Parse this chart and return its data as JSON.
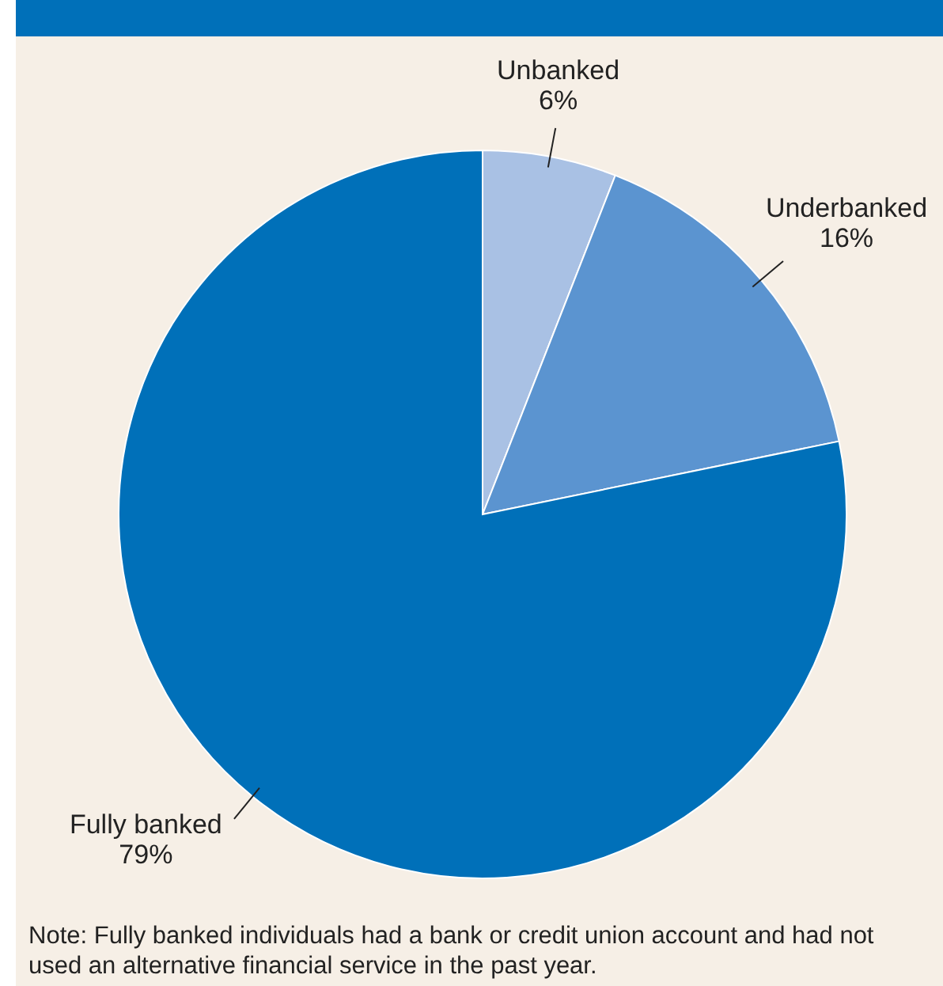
{
  "chart_data": {
    "type": "pie",
    "categories": [
      "Unbanked",
      "Underbanked",
      "Fully banked"
    ],
    "values": [
      6,
      16,
      79
    ],
    "colors": [
      "#a9c1e4",
      "#5b94d0",
      "#0070b9"
    ],
    "value_labels": [
      "6%",
      "16%",
      "79%"
    ],
    "annotations": [
      "Note: Fully banked individuals had a bank or credit union account and had not used an alternative financial service in the past year."
    ]
  }
}
